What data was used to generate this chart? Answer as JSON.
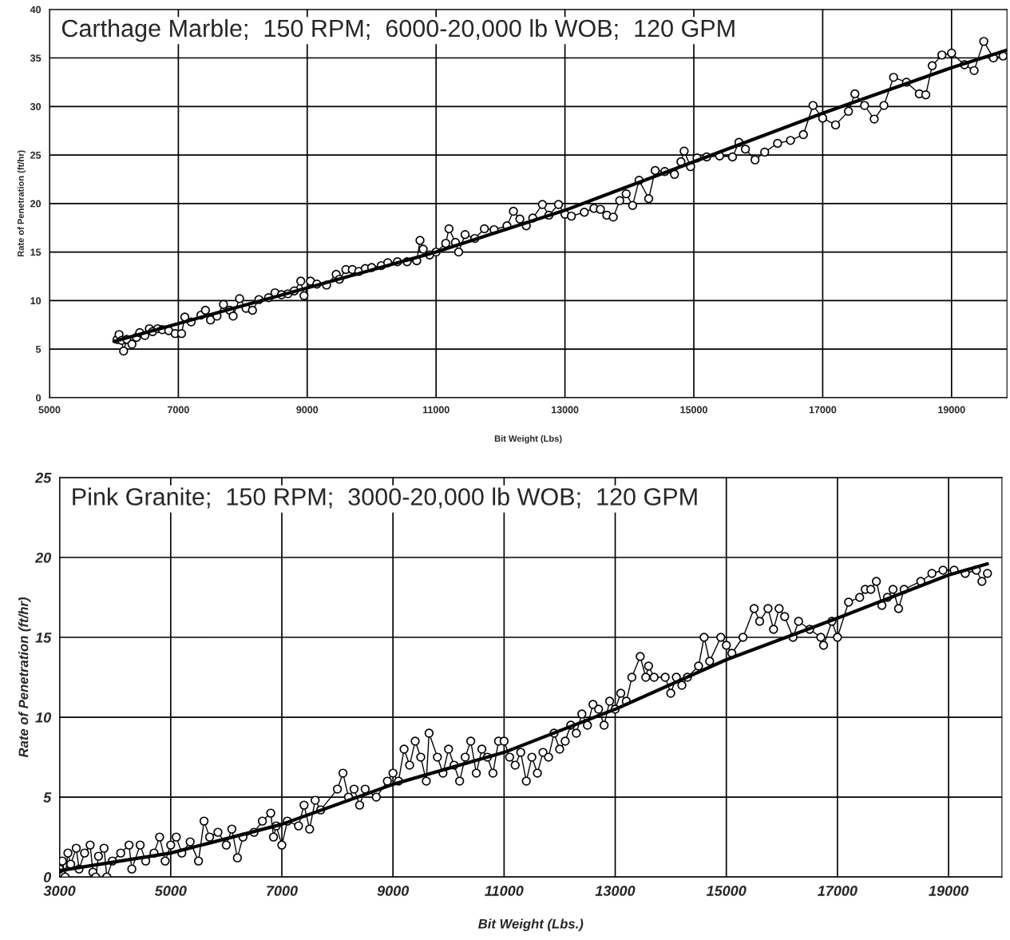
{
  "chart_data": [
    {
      "type": "line",
      "title": "Carthage Marble;  150 RPM;  6000-20,000 lb WOB;  120 GPM",
      "xlabel": "Bit Weight (Lbs)",
      "ylabel": "Rate of Penetration (ft/hr)",
      "xlim": [
        5000,
        19860
      ],
      "xticks": [
        5000,
        7000,
        9000,
        11000,
        13000,
        15000,
        17000,
        19000
      ],
      "ylim": [
        0,
        40
      ],
      "yticks": [
        0,
        5,
        10,
        15,
        20,
        25,
        30,
        35,
        40
      ],
      "grid": true,
      "legend": false,
      "series": [
        {
          "color": "#000000",
          "marker": "circle",
          "x": [
            6050,
            6080,
            6120,
            6150,
            6200,
            6280,
            6350,
            6400,
            6480,
            6550,
            6600,
            6680,
            6750,
            6850,
            6950,
            7050,
            7100,
            7200,
            7350,
            7420,
            7500,
            7600,
            7700,
            7800,
            7850,
            7950,
            8050,
            8150,
            8250,
            8400,
            8500,
            8600,
            8700,
            8800,
            8900,
            8950,
            9050,
            9150,
            9300,
            9450,
            9500,
            9600,
            9700,
            9800,
            9900,
            10000,
            10150,
            10250,
            10400,
            10550,
            10700,
            10750,
            10800,
            10900,
            11000,
            11150,
            11200,
            11300,
            11350,
            11450,
            11600,
            11750,
            11900,
            12100,
            12200,
            12300,
            12400,
            12500,
            12650,
            12750,
            12900,
            13000,
            13100,
            13300,
            13450,
            13550,
            13650,
            13750,
            13850,
            13950,
            14050,
            14150,
            14300,
            14400,
            14550,
            14700,
            14800,
            14850,
            14950,
            15050,
            15200,
            15400,
            15600,
            15700,
            15800,
            15950,
            16100,
            16300,
            16500,
            16700,
            16850,
            17000,
            17200,
            17400,
            17500,
            17650,
            17800,
            17950,
            18100,
            18300,
            18500,
            18600,
            18700,
            18850,
            19000,
            19200,
            19350,
            19500,
            19650,
            19800
          ],
          "values": [
            6,
            6.5,
            5.9,
            4.8,
            6,
            5.5,
            6.2,
            6.7,
            6.4,
            7.1,
            6.8,
            7.1,
            7,
            6.9,
            6.6,
            6.6,
            8.3,
            7.8,
            8.5,
            9,
            8,
            8.4,
            9.6,
            9,
            8.4,
            10.2,
            9.2,
            9,
            10.1,
            10.3,
            10.8,
            10.6,
            10.7,
            11,
            12,
            10.5,
            12,
            11.7,
            11.6,
            12.7,
            12.2,
            13.2,
            13.2,
            13,
            13.3,
            13.4,
            13.6,
            13.9,
            14,
            14,
            14.1,
            16.2,
            15.3,
            14.7,
            15,
            15.9,
            17.4,
            16,
            15,
            16.8,
            16.4,
            17.4,
            17.3,
            17.7,
            19.2,
            18.4,
            17.7,
            18.5,
            19.9,
            18.8,
            19.9,
            18.9,
            18.7,
            19.1,
            19.5,
            19.4,
            18.8,
            18.6,
            20.3,
            21,
            19.8,
            22.4,
            20.5,
            23.4,
            23.3,
            23,
            24.3,
            25.4,
            23.8,
            24.7,
            24.8,
            24.9,
            24.8,
            26.3,
            25.6,
            24.5,
            25.3,
            26.2,
            26.5,
            27.1,
            30.1,
            28.8,
            28.1,
            29.5,
            31.3,
            30.1,
            28.7,
            30.1,
            33,
            32.5,
            31.3,
            31.2,
            34.2,
            35.3,
            35.5,
            34.3,
            33.7,
            36.7,
            35,
            35.2
          ]
        },
        {
          "color": "#000000",
          "marker": "none",
          "x": [
            6000,
            9000,
            11000,
            13000,
            15000,
            17000,
            19000,
            19860
          ],
          "values": [
            5.8,
            11.3,
            15,
            19.3,
            24.3,
            29.3,
            34,
            35.8
          ]
        }
      ]
    },
    {
      "type": "line",
      "title": "Pink Granite;  150 RPM;  3000-20,000 lb WOB;  120 GPM",
      "xlabel": "Bit Weight (Lbs.)",
      "ylabel": "Rate of Penetration (ft/hr)",
      "xlim": [
        3000,
        19960
      ],
      "xticks": [
        3000,
        5000,
        7000,
        9000,
        11000,
        13000,
        15000,
        17000,
        19000
      ],
      "ylim": [
        0,
        25
      ],
      "yticks": [
        0,
        5,
        10,
        15,
        20,
        25
      ],
      "grid": true,
      "legend": false,
      "series": [
        {
          "color": "#000000",
          "marker": "circle",
          "x": [
            3000,
            3050,
            3100,
            3150,
            3200,
            3300,
            3350,
            3450,
            3550,
            3600,
            3650,
            3700,
            3800,
            3850,
            3950,
            4100,
            4250,
            4300,
            4450,
            4550,
            4700,
            4800,
            4900,
            5000,
            5100,
            5200,
            5350,
            5500,
            5600,
            5700,
            5850,
            6000,
            6100,
            6200,
            6300,
            6500,
            6650,
            6800,
            6850,
            6900,
            7000,
            7100,
            7300,
            7400,
            7500,
            7600,
            7700,
            8000,
            8100,
            8200,
            8300,
            8400,
            8500,
            8700,
            8900,
            9000,
            9100,
            9200,
            9300,
            9400,
            9500,
            9600,
            9650,
            9800,
            9900,
            10000,
            10100,
            10200,
            10300,
            10400,
            10500,
            10600,
            10700,
            10800,
            10900,
            11000,
            11100,
            11200,
            11300,
            11400,
            11500,
            11600,
            11700,
            11800,
            11900,
            12000,
            12100,
            12200,
            12300,
            12400,
            12500,
            12600,
            12700,
            12800,
            12900,
            13000,
            13100,
            13200,
            13300,
            13450,
            13550,
            13600,
            13700,
            13900,
            14000,
            14100,
            14200,
            14300,
            14500,
            14600,
            14700,
            14900,
            15000,
            15100,
            15300,
            15500,
            15600,
            15750,
            15850,
            15950,
            16050,
            16200,
            16300,
            16500,
            16700,
            16750,
            16900,
            17000,
            17200,
            17400,
            17500,
            17600,
            17700,
            17800,
            17900,
            18000,
            18100,
            18200,
            18500,
            18700,
            18900,
            19100,
            19300,
            19500,
            19600,
            19700
          ],
          "values": [
            0.5,
            1,
            0,
            1.5,
            0.8,
            1.8,
            0.5,
            1.5,
            2,
            0.3,
            0,
            1.3,
            1.8,
            0,
            1,
            1.5,
            2,
            0.5,
            2,
            1,
            1.5,
            2.5,
            1,
            2,
            2.5,
            1.5,
            2.2,
            1,
            3.5,
            2.5,
            2.8,
            2,
            3,
            1.2,
            2.5,
            2.8,
            3.5,
            4,
            2.5,
            3.2,
            2,
            3.5,
            3.2,
            4.5,
            3,
            4.8,
            4.2,
            5.5,
            6.5,
            5,
            5.5,
            4.5,
            5.5,
            5,
            6,
            6.5,
            6,
            8,
            7,
            8.5,
            7.5,
            6,
            9,
            7.5,
            6.5,
            8,
            7,
            6,
            7.5,
            8.5,
            6.5,
            8,
            7.5,
            6.5,
            8.5,
            8.5,
            7.5,
            7,
            7.8,
            6,
            7.5,
            6.5,
            7.8,
            7.5,
            9,
            8,
            8.5,
            9.5,
            9,
            10.2,
            9.5,
            10.8,
            10.5,
            9.5,
            11,
            10.5,
            11.5,
            11,
            12.5,
            13.8,
            12.5,
            13.2,
            12.5,
            12.5,
            11.5,
            12.5,
            12,
            12.5,
            13.2,
            15,
            13.5,
            15,
            14.5,
            14,
            15,
            16.8,
            16,
            16.8,
            15.5,
            16.8,
            16.3,
            15,
            16,
            15.5,
            15,
            14.5,
            16,
            15,
            17.2,
            17.5,
            18,
            18,
            18.5,
            17,
            17.5,
            18,
            16.8,
            18,
            18.5,
            19,
            19.2,
            19.2,
            19,
            19.2,
            18.5,
            19
          ]
        },
        {
          "color": "#000000",
          "marker": "none",
          "x": [
            3000,
            5000,
            7000,
            9000,
            11000,
            13000,
            15000,
            17000,
            19000,
            19700
          ],
          "values": [
            0.4,
            1.5,
            3.3,
            5.8,
            7.8,
            10.5,
            13.6,
            16.2,
            18.9,
            19.6
          ]
        }
      ]
    }
  ]
}
